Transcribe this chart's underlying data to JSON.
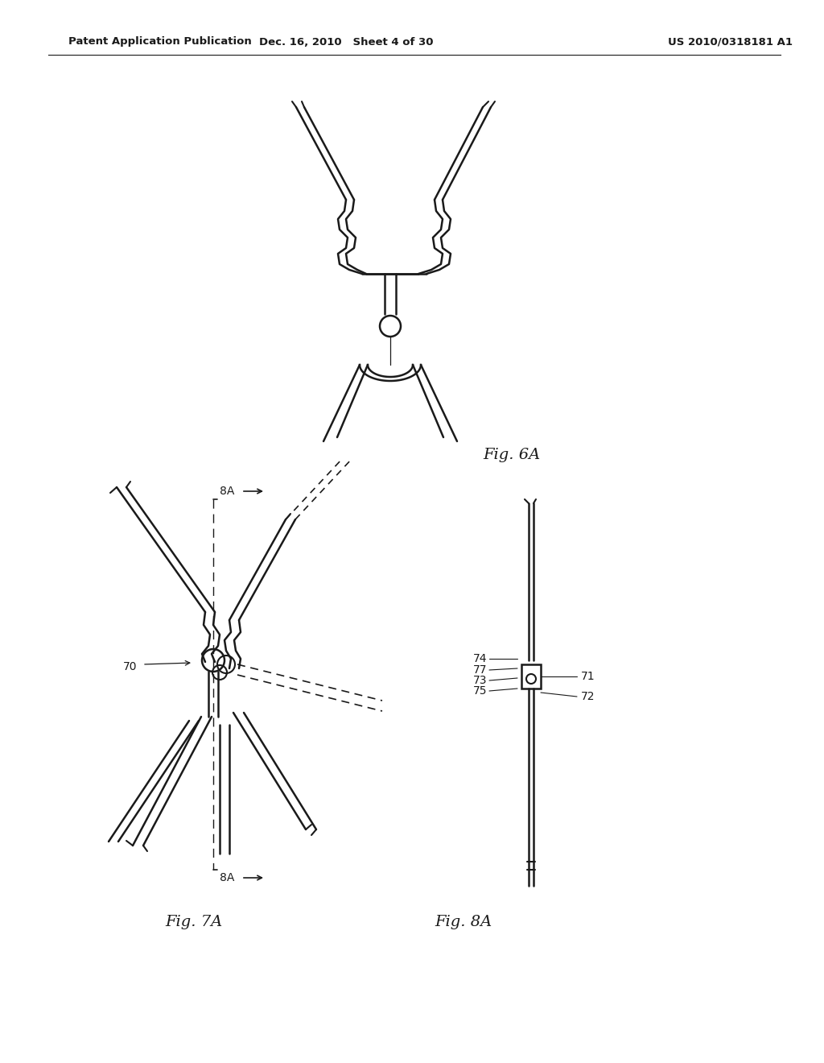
{
  "header_left": "Patent Application Publication",
  "header_mid": "Dec. 16, 2010   Sheet 4 of 30",
  "header_right": "US 2010/0318181 A1",
  "fig6a_label": "Fig. 6A",
  "fig7a_label": "Fig. 7A",
  "fig8a_label": "Fig. 8A",
  "label_70": "70",
  "label_71": "71",
  "label_72": "72",
  "label_73": "73",
  "label_74": "74",
  "label_75": "75",
  "label_77": "77",
  "label_8A_top": "8A",
  "label_8A_bot": "8A",
  "line_color": "#1a1a1a",
  "bg_color": "#ffffff"
}
